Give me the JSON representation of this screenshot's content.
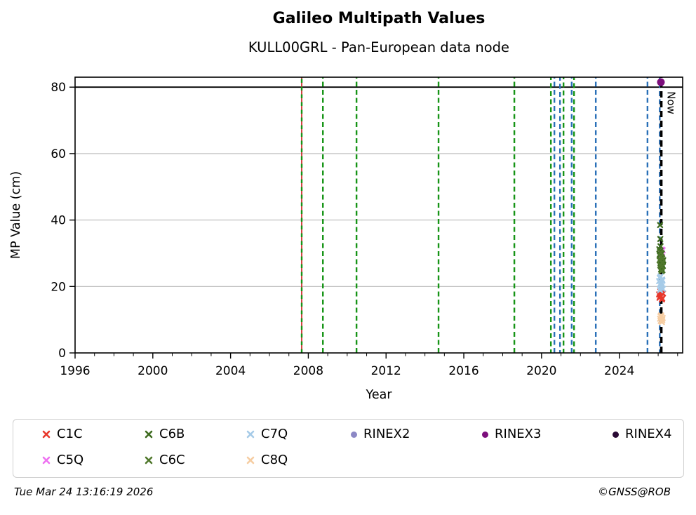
{
  "chart_data": {
    "type": "scatter",
    "title": "Galileo Multipath Values",
    "subtitle": "KULL00GRL - Pan-European data node",
    "xlabel": "Year",
    "ylabel": "MP Value (cm)",
    "xlim": [
      1996,
      2027.26
    ],
    "ylim": [
      0,
      83
    ],
    "xticks_major": [
      1996,
      2000,
      2004,
      2008,
      2012,
      2016,
      2020,
      2024
    ],
    "xticks_minor_step": 1,
    "yticks": [
      0,
      20,
      40,
      60,
      80
    ],
    "grid_y": [
      20,
      40,
      60
    ],
    "grid_color": "#b8b8b8",
    "threshold_line_y": 80,
    "threshold_color": "#000000",
    "legend_position": "below",
    "now_line": {
      "year": 2026.16,
      "label": "Now",
      "color": "#000000",
      "width": 3.6,
      "dash": "9 5"
    },
    "event_lines": [
      {
        "year": 2007.66,
        "color": "#cc2020",
        "width": 1.7,
        "dash": "5.5 5.5",
        "dashoffset": 5.5
      },
      {
        "year": 2007.66,
        "color": "#169416",
        "width": 2.4,
        "dash": "5.5 5.5",
        "dashoffset": 0
      },
      {
        "year": 2008.75,
        "color": "#169416",
        "width": 2.4,
        "dash": "7 4.5",
        "dashoffset": 0
      },
      {
        "year": 2010.48,
        "color": "#169416",
        "width": 2.4,
        "dash": "7 4.5",
        "dashoffset": 0
      },
      {
        "year": 2014.7,
        "color": "#169416",
        "width": 2.4,
        "dash": "7 4.5",
        "dashoffset": 0
      },
      {
        "year": 2018.6,
        "color": "#169416",
        "width": 2.4,
        "dash": "7 4.5",
        "dashoffset": 0
      },
      {
        "year": 2020.48,
        "color": "#169416",
        "width": 2.4,
        "dash": "7 4.5",
        "dashoffset": 2
      },
      {
        "year": 2020.66,
        "color": "#2a70b8",
        "width": 2.4,
        "dash": "7 4.5",
        "dashoffset": 0
      },
      {
        "year": 2020.95,
        "color": "#2a70b8",
        "width": 2.4,
        "dash": "7 4.5",
        "dashoffset": 3
      },
      {
        "year": 2021.13,
        "color": "#169416",
        "width": 2.4,
        "dash": "7 4.5",
        "dashoffset": 1
      },
      {
        "year": 2021.55,
        "color": "#2a70b8",
        "width": 2.4,
        "dash": "7 4.5",
        "dashoffset": 0
      },
      {
        "year": 2021.67,
        "color": "#169416",
        "width": 2.4,
        "dash": "7 4.5",
        "dashoffset": 2
      },
      {
        "year": 2022.79,
        "color": "#2a70b8",
        "width": 2.4,
        "dash": "7 4.5",
        "dashoffset": 0
      },
      {
        "year": 2025.45,
        "color": "#2a70b8",
        "width": 2.4,
        "dash": "7 4.5",
        "dashoffset": 0
      },
      {
        "year": 2026.08,
        "color": "#2a70b8",
        "width": 2.4,
        "dash": "7 4.5",
        "dashoffset": 2
      }
    ],
    "series": [
      {
        "name": "C1C",
        "marker": "x",
        "color": "#e8382c",
        "points": [
          [
            2026.05,
            17.6
          ],
          [
            2026.09,
            16.9
          ],
          [
            2026.13,
            17.3
          ],
          [
            2026.17,
            18.1
          ],
          [
            2026.21,
            16.4
          ],
          [
            2026.25,
            17.9
          ],
          [
            2026.11,
            18.5
          ],
          [
            2026.19,
            16.1
          ],
          [
            2026.15,
            17.0
          ],
          [
            2026.07,
            16.6
          ]
        ]
      },
      {
        "name": "C5Q",
        "marker": "x",
        "color": "#ee72f1",
        "points": [
          [
            2026.12,
            29.6
          ],
          [
            2026.16,
            30.3
          ],
          [
            2026.2,
            28.9
          ],
          [
            2026.23,
            30.9
          ],
          [
            2026.14,
            29.1
          ],
          [
            2026.18,
            31.1
          ]
        ]
      },
      {
        "name": "C6B",
        "marker": "x",
        "color": "#3e6b1f",
        "points": [
          [
            2026.1,
            38.5
          ],
          [
            2026.11,
            34.3
          ],
          [
            2026.06,
            31.2
          ],
          [
            2026.08,
            29.6
          ],
          [
            2026.1,
            28.1
          ],
          [
            2026.12,
            27.0
          ],
          [
            2026.14,
            26.1
          ],
          [
            2026.16,
            27.6
          ],
          [
            2026.18,
            25.6
          ],
          [
            2026.2,
            26.6
          ],
          [
            2026.09,
            30.6
          ],
          [
            2026.12,
            32.1
          ],
          [
            2026.15,
            25.1
          ],
          [
            2026.17,
            28.6
          ],
          [
            2026.19,
            29.9
          ],
          [
            2026.22,
            24.9
          ],
          [
            2026.24,
            26.2
          ],
          [
            2026.26,
            27.9
          ]
        ]
      },
      {
        "name": "C6C",
        "marker": "x",
        "color": "#50782c",
        "points": [
          [
            2026.07,
            27.9
          ],
          [
            2026.11,
            26.4
          ],
          [
            2026.15,
            29.0
          ],
          [
            2026.19,
            26.0
          ],
          [
            2026.23,
            27.3
          ],
          [
            2026.13,
            30.2
          ],
          [
            2026.17,
            24.6
          ],
          [
            2026.21,
            28.4
          ]
        ]
      },
      {
        "name": "C7Q",
        "marker": "x",
        "color": "#a6cbe8",
        "points": [
          [
            2026.05,
            21.6
          ],
          [
            2026.08,
            22.6
          ],
          [
            2026.11,
            20.6
          ],
          [
            2026.13,
            19.6
          ],
          [
            2026.15,
            21.1
          ],
          [
            2026.17,
            20.1
          ],
          [
            2026.2,
            22.1
          ],
          [
            2026.24,
            19.3
          ],
          [
            2026.12,
            23.0
          ],
          [
            2026.18,
            20.9
          ],
          [
            2026.22,
            21.8
          ],
          [
            2026.1,
            18.9
          ]
        ]
      },
      {
        "name": "C8Q",
        "marker": "x",
        "color": "#f6cda2",
        "points": [
          [
            2026.1,
            10.3
          ],
          [
            2026.13,
            9.6
          ],
          [
            2026.16,
            10.9
          ],
          [
            2026.19,
            9.3
          ],
          [
            2026.12,
            11.0
          ],
          [
            2026.21,
            9.9
          ],
          [
            2026.15,
            11.3
          ],
          [
            2026.23,
            10.5
          ]
        ]
      },
      {
        "name": "RINEX2",
        "marker": "dot",
        "color": "#8c88c5",
        "points": []
      },
      {
        "name": "RINEX3",
        "marker": "dot",
        "color": "#7c0e7c",
        "points": [
          [
            2026.14,
            81.5
          ]
        ]
      },
      {
        "name": "RINEX4",
        "marker": "dot",
        "color": "#2a0b35",
        "points": []
      }
    ]
  },
  "legend": {
    "items": [
      {
        "label": "C1C",
        "marker": "x",
        "color": "#e8382c",
        "col": 41,
        "row": 0
      },
      {
        "label": "C6B",
        "marker": "x",
        "color": "#3e6b1f",
        "col": 187,
        "row": 0
      },
      {
        "label": "C7Q",
        "marker": "x",
        "color": "#a6cbe8",
        "col": 332,
        "row": 0
      },
      {
        "label": "RINEX2",
        "marker": "dot",
        "color": "#8c88c5",
        "col": 481,
        "row": 0
      },
      {
        "label": "RINEX3",
        "marker": "dot",
        "color": "#7c0e7c",
        "col": 668,
        "row": 0
      },
      {
        "label": "RINEX4",
        "marker": "dot",
        "color": "#2a0b35",
        "col": 854,
        "row": 0
      },
      {
        "label": "C5Q",
        "marker": "x",
        "color": "#ee72f1",
        "col": 41,
        "row": 1
      },
      {
        "label": "C6C",
        "marker": "x",
        "color": "#50782c",
        "col": 187,
        "row": 1
      },
      {
        "label": "C8Q",
        "marker": "x",
        "color": "#f6cda2",
        "col": 332,
        "row": 1
      }
    ]
  },
  "footer": {
    "timestamp": "Tue Mar 24 13:16:19 2026",
    "credit": "©GNSS@ROB"
  }
}
